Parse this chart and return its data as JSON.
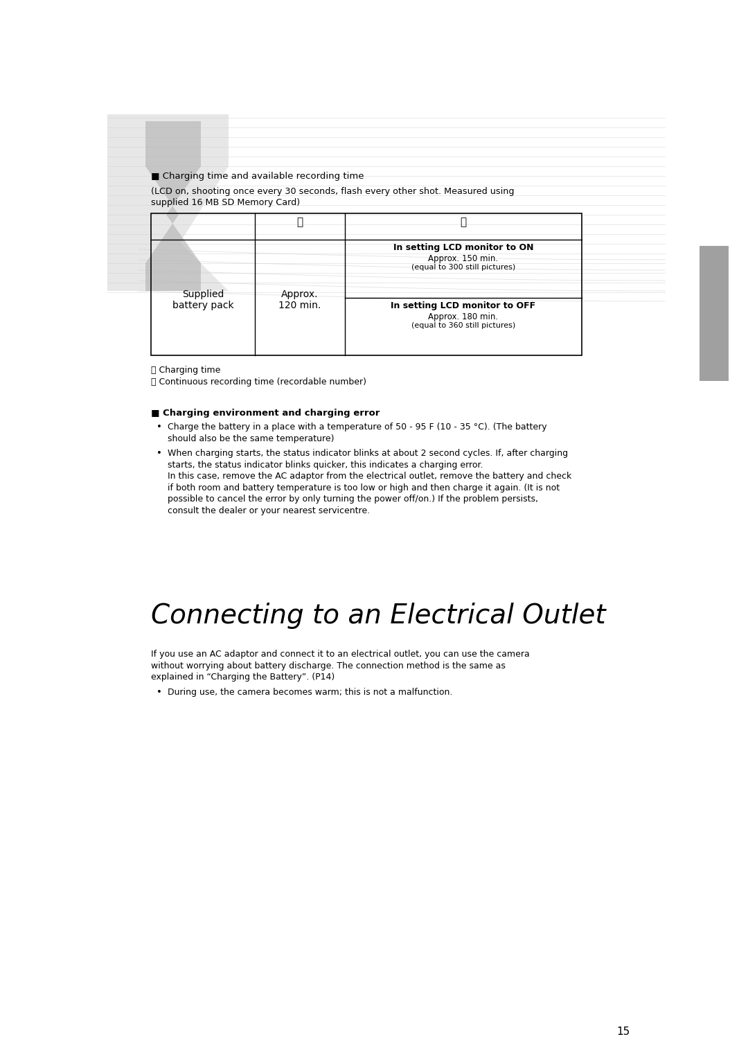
{
  "page_width": 10.8,
  "page_height": 15.26,
  "bg_color": "#ffffff",
  "text_color": "#000000",
  "section1_header": "■ Charging time and available recording time",
  "section1_sub1": "(LCD on, shooting once every 30 seconds, flash every other shot. Measured using",
  "section1_sub2": "supplied 16 MB SD Memory Card)",
  "table_row1_col3a_header": "In setting LCD monitor to ON",
  "table_row1_col3a_line1": "Approx. 150 min.",
  "table_row1_col3a_line2": "(equal to 300 still pictures)",
  "table_row1_col3b_header": "In setting LCD monitor to OFF",
  "table_row1_col3b_line1": "Approx. 180 min.",
  "table_row1_col3b_line2": "(equal to 360 still pictures)",
  "section2_header": "■ Charging environment and charging error",
  "section2_bullet1": "Charge the battery in a place with a temperature of 50 - 95 F (10 - 35 °C). (The battery",
  "section2_bullet1b": "should also be the same temperature)",
  "section2_bullet2a": "When charging starts, the status indicator blinks at about 2 second cycles. If, after charging",
  "section2_bullet2b": "starts, the status indicator blinks quicker, this indicates a charging error.",
  "section2_bullet2c": "In this case, remove the AC adaptor from the electrical outlet, remove the battery and check",
  "section2_bullet2d": "if both room and battery temperature is too low or high and then charge it again. (It is not",
  "section2_bullet2e": "possible to cancel the error by only turning the power off/on.) If the problem persists,",
  "section2_bullet2f": "consult the dealer or your nearest servicentre.",
  "main_title": "Connecting to an Electrical Outlet",
  "main_para1a": "If you use an AC adaptor and connect it to an electrical outlet, you can use the camera",
  "main_para1b": "without worrying about battery discharge. The connection method is the same as",
  "main_para1c": "explained in “Charging the Battery”. (P14)",
  "main_bullet1": "During use, the camera becomes warm; this is not a malfunction.",
  "page_number": "15"
}
